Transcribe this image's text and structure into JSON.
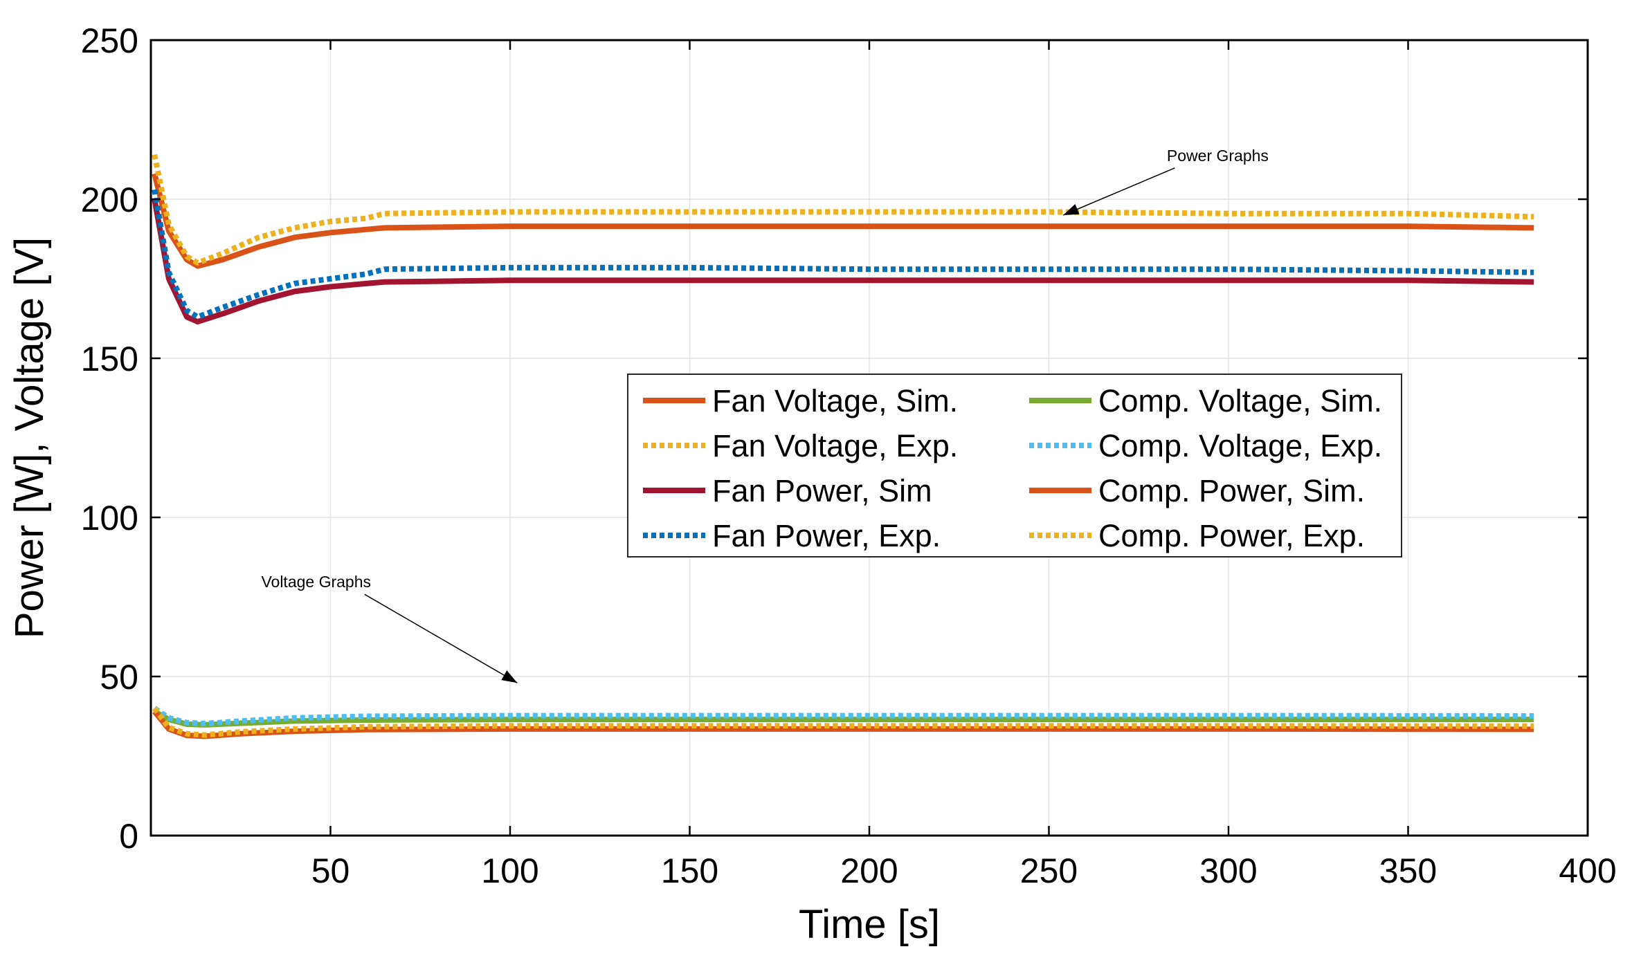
{
  "chart_data": {
    "type": "line",
    "xlabel": "Time [s]",
    "ylabel": "Power [W], Voltage [V]",
    "xlim": [
      0,
      400
    ],
    "ylim": [
      0,
      250
    ],
    "xticks": [
      50,
      100,
      150,
      200,
      250,
      300,
      350,
      400
    ],
    "yticks": [
      0,
      50,
      100,
      150,
      200,
      250
    ],
    "grid": true,
    "legend_position": "center-right",
    "legend_columns": 2,
    "series": [
      {
        "name": "Fan Voltage, Sim.",
        "color": "#D95319",
        "style": "solid",
        "x": [
          1,
          5,
          10,
          13,
          20,
          30,
          40,
          50,
          60,
          65,
          100,
          150,
          200,
          250,
          300,
          350,
          385
        ],
        "y": [
          208,
          190,
          181,
          179,
          181,
          185,
          188,
          189.5,
          190.5,
          191,
          191.5,
          191.5,
          191.5,
          191.5,
          191.5,
          191.5,
          191
        ]
      },
      {
        "name": "Fan Voltage, Exp.",
        "color": "#EDB120",
        "style": "dotted",
        "x": [
          1,
          5,
          10,
          13,
          20,
          30,
          40,
          50,
          60,
          65,
          100,
          150,
          200,
          250,
          300,
          350,
          385
        ],
        "y": [
          214,
          192,
          182,
          180,
          183,
          188,
          191,
          193,
          194,
          195.5,
          196,
          196,
          196,
          196,
          195.5,
          195.5,
          194.5
        ]
      },
      {
        "name": "Fan Power, Sim",
        "color": "#A2142F",
        "style": "solid",
        "x": [
          1,
          5,
          10,
          13,
          20,
          30,
          40,
          50,
          60,
          65,
          100,
          150,
          200,
          250,
          300,
          350,
          385
        ],
        "y": [
          200,
          175,
          163,
          161.5,
          164,
          168,
          171,
          172.5,
          173.5,
          174,
          174.5,
          174.5,
          174.5,
          174.5,
          174.5,
          174.5,
          174
        ]
      },
      {
        "name": "Fan Power, Exp.",
        "color": "#0072BD",
        "style": "dotted",
        "x": [
          1,
          5,
          10,
          13,
          20,
          30,
          40,
          50,
          60,
          65,
          100,
          150,
          200,
          250,
          300,
          350,
          385
        ],
        "y": [
          203,
          177,
          165,
          163,
          166,
          170,
          173.5,
          175,
          176.5,
          178,
          178.5,
          178.5,
          178,
          178,
          178,
          177.5,
          177
        ]
      },
      {
        "name": "Comp. Voltage, Sim.",
        "color": "#77AC30",
        "style": "solid",
        "x": [
          1,
          5,
          10,
          15,
          25,
          40,
          60,
          100,
          200,
          300,
          385
        ],
        "y": [
          39,
          36.5,
          35,
          34.8,
          35.3,
          36,
          36.3,
          36.5,
          36.5,
          36.5,
          36.5
        ]
      },
      {
        "name": "Comp. Voltage, Exp.",
        "color": "#4DBEEE",
        "style": "dotted",
        "x": [
          1,
          5,
          10,
          15,
          25,
          40,
          60,
          100,
          200,
          300,
          385
        ],
        "y": [
          40,
          37,
          35.5,
          35.2,
          36,
          37,
          37.5,
          37.7,
          37.7,
          37.7,
          37.6
        ]
      },
      {
        "name": "Comp. Power, Sim.",
        "color": "#D95319",
        "style": "solid",
        "x": [
          1,
          5,
          10,
          15,
          25,
          40,
          60,
          100,
          200,
          300,
          385
        ],
        "y": [
          39,
          33.5,
          31.5,
          31.2,
          32,
          32.8,
          33.3,
          33.5,
          33.5,
          33.5,
          33.4
        ]
      },
      {
        "name": "Comp. Power, Exp.",
        "color": "#EDB120",
        "style": "dotted",
        "x": [
          1,
          5,
          10,
          15,
          25,
          40,
          60,
          100,
          200,
          300,
          385
        ],
        "y": [
          40,
          34,
          32,
          31.6,
          32.6,
          33.5,
          34.2,
          34.5,
          34.5,
          34.5,
          34.4
        ]
      }
    ],
    "annotations": [
      {
        "text": "Power Graphs",
        "text_at": [
          297,
          212
        ],
        "arrow_to": [
          254,
          195
        ]
      },
      {
        "text": "Voltage Graphs",
        "text_at": [
          46,
          78
        ],
        "arrow_to": [
          102,
          48
        ]
      }
    ]
  }
}
